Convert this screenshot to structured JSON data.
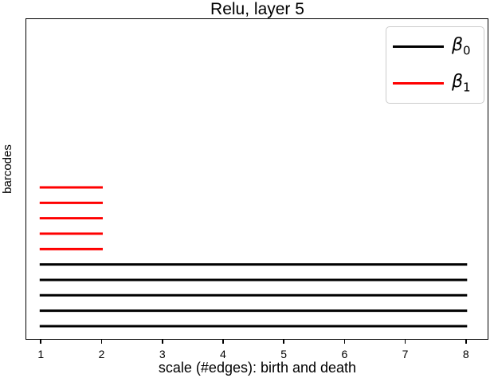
{
  "chart_data": {
    "type": "line",
    "variant": "persistence-barcode",
    "title": "Relu, layer 5",
    "xlabel": "scale (#edges): birth and death",
    "ylabel": "barcodes",
    "x_ticks": [
      "1",
      "2",
      "3",
      "4",
      "5",
      "6",
      "7",
      "8"
    ],
    "x_tick_values": [
      1,
      2,
      3,
      4,
      5,
      6,
      7,
      8
    ],
    "xlim": [
      0.76,
      8.37
    ],
    "grid": false,
    "colors": {
      "beta0": "#000000",
      "beta1": "#ff0000"
    },
    "legend": {
      "position": "upper right",
      "entries": [
        {
          "symbol": "β",
          "sub": "0",
          "color": "#000000"
        },
        {
          "symbol": "β",
          "sub": "1",
          "color": "#ff0000"
        }
      ]
    },
    "series": [
      {
        "name": "β1",
        "color": "#ff0000",
        "bars": [
          {
            "birth": 1,
            "death": 2,
            "row": 1
          },
          {
            "birth": 1,
            "death": 2,
            "row": 2
          },
          {
            "birth": 1,
            "death": 2,
            "row": 3
          },
          {
            "birth": 1,
            "death": 2,
            "row": 4
          },
          {
            "birth": 1,
            "death": 2,
            "row": 5
          }
        ]
      },
      {
        "name": "β0",
        "color": "#000000",
        "bars": [
          {
            "birth": 1,
            "death": 8,
            "row": 6
          },
          {
            "birth": 1,
            "death": 8,
            "row": 7
          },
          {
            "birth": 1,
            "death": 8,
            "row": 8
          },
          {
            "birth": 1,
            "death": 8,
            "row": 9
          },
          {
            "birth": 1,
            "death": 8,
            "row": 10
          }
        ]
      }
    ]
  }
}
